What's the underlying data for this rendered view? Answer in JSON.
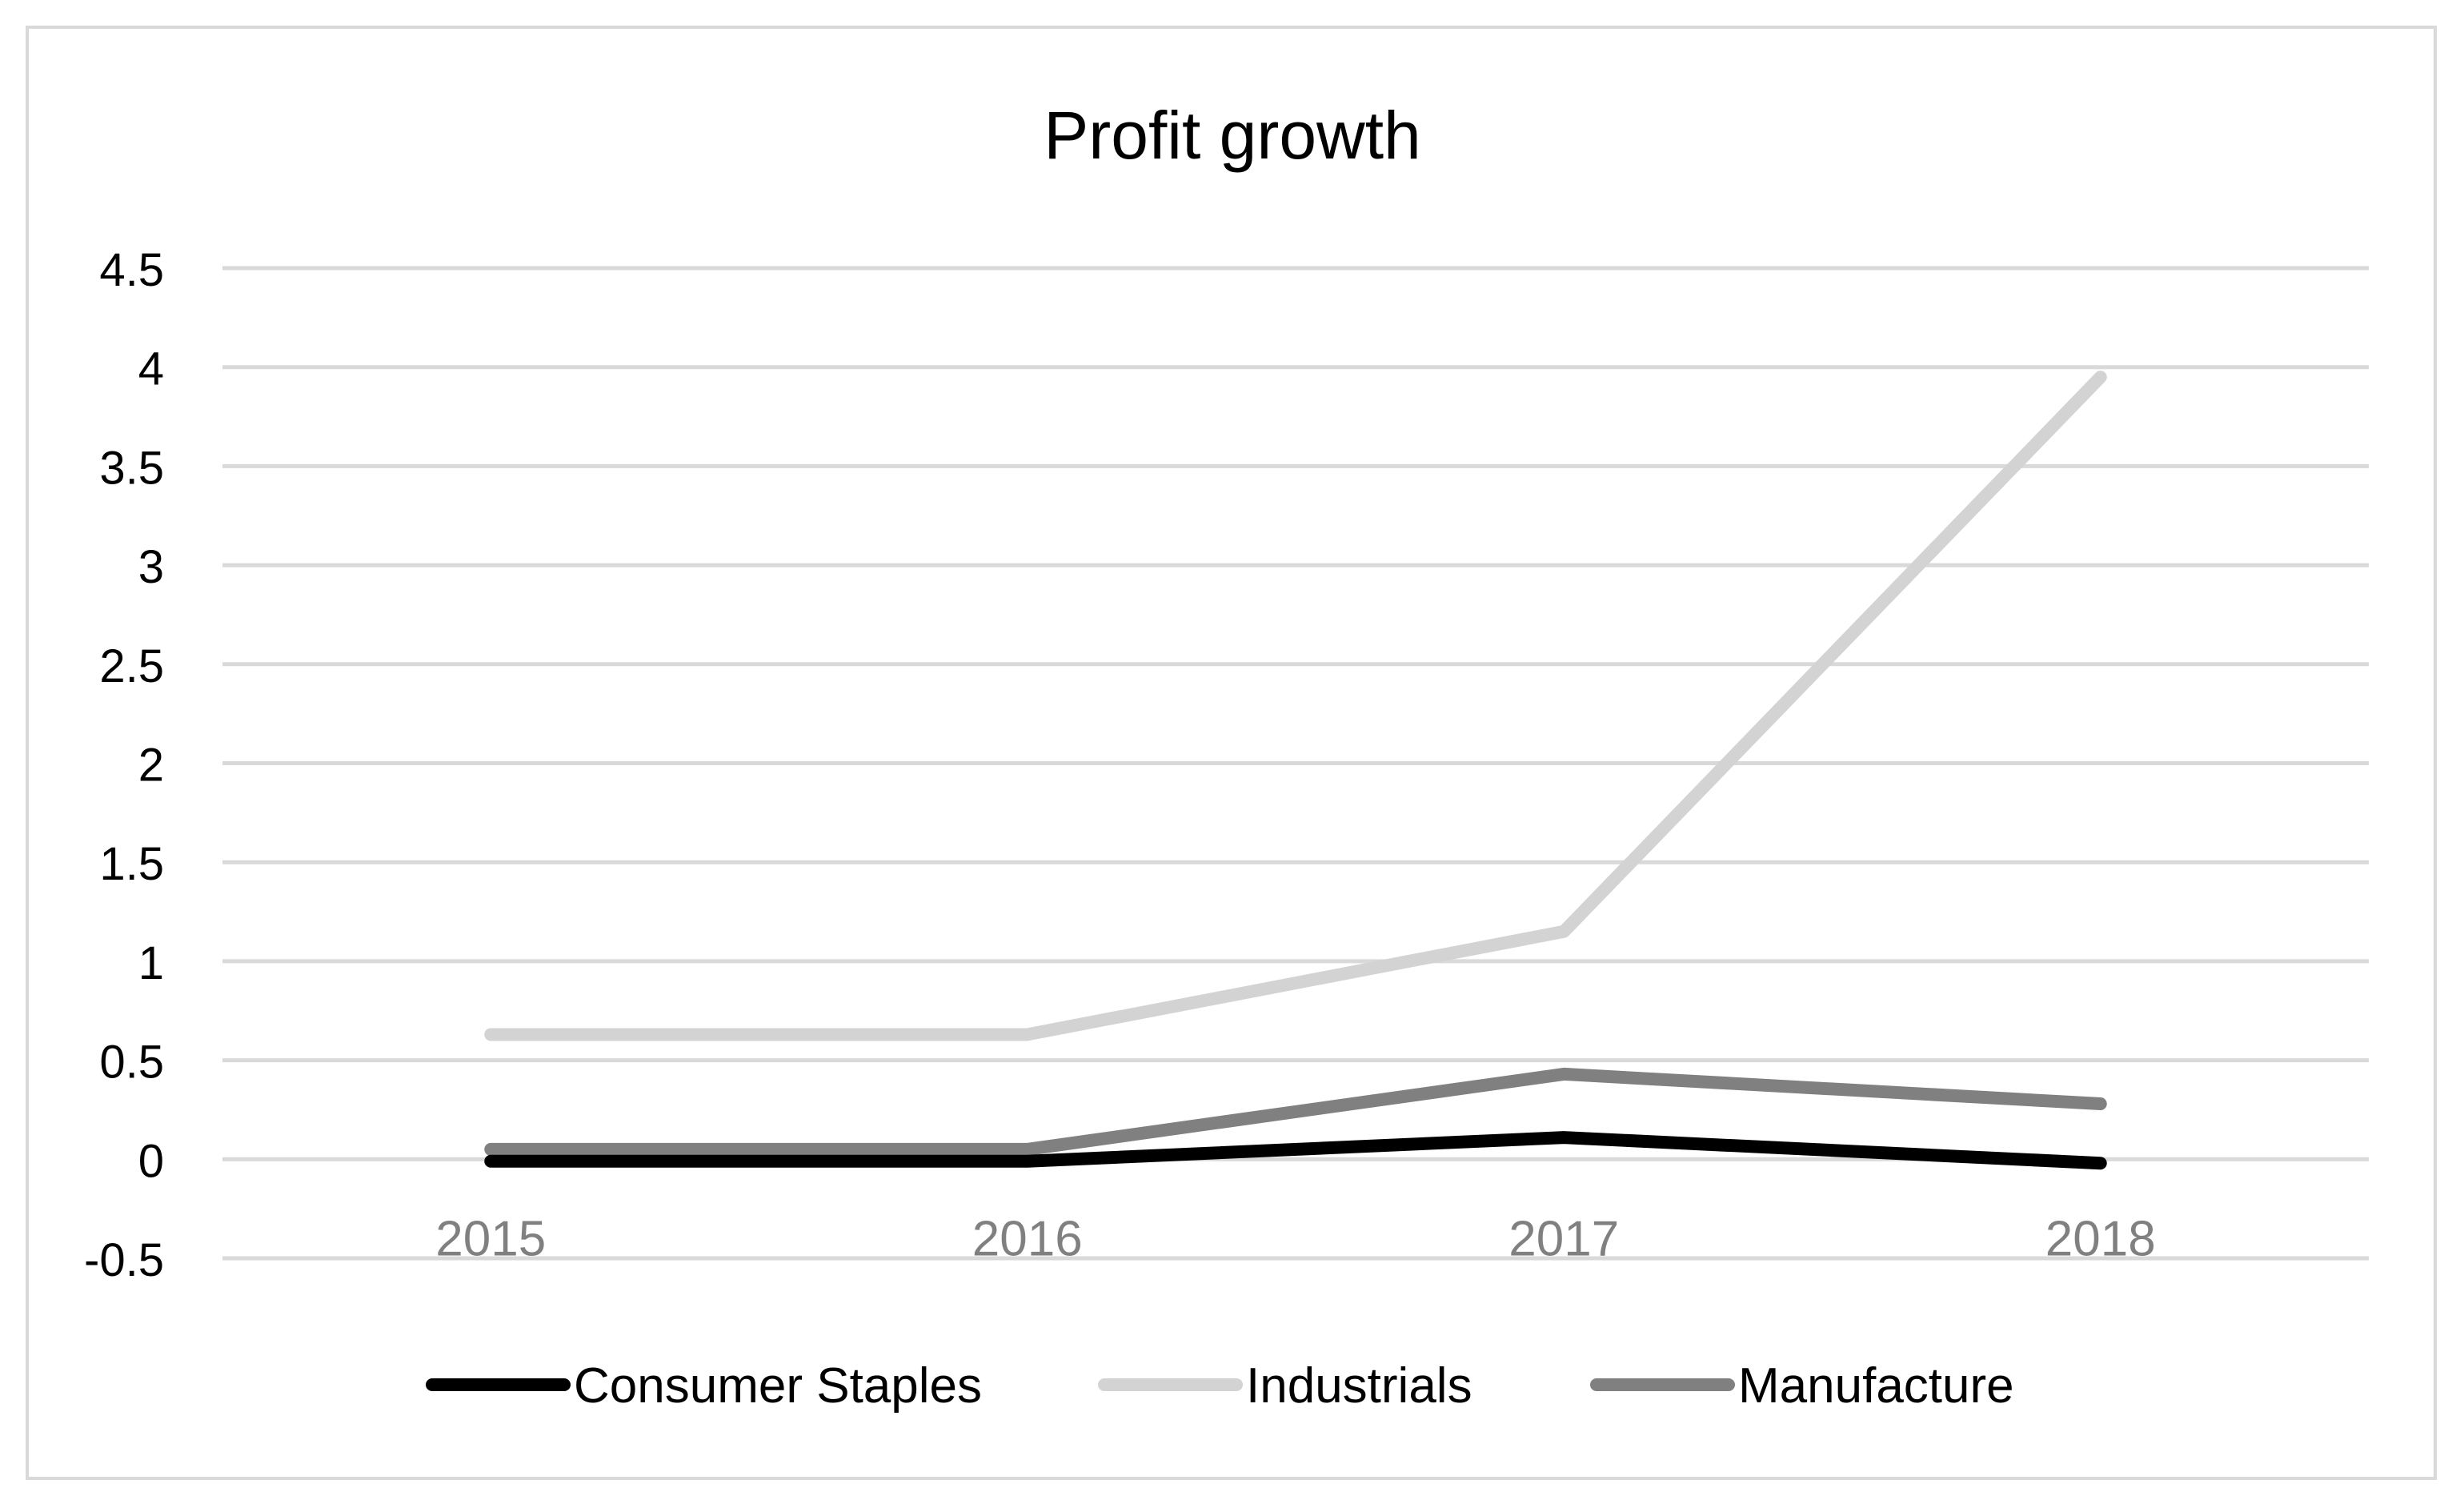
{
  "chart_data": {
    "type": "line",
    "title": "Profit growth",
    "categories": [
      "2015",
      "2016",
      "2017",
      "2018"
    ],
    "ylim": [
      -0.5,
      4.5
    ],
    "yticks": [
      -0.5,
      0,
      0.5,
      1,
      1.5,
      2,
      2.5,
      3,
      3.5,
      4,
      4.5
    ],
    "ytick_labels": [
      "-0.5",
      "0",
      "0.5",
      "1",
      "1.5",
      "2",
      "2.5",
      "3",
      "3.5",
      "4",
      "4.5"
    ],
    "xlabel": "",
    "ylabel": "",
    "grid": true,
    "legend_position": "bottom",
    "series": [
      {
        "name": "Consumer Staples",
        "color": "#000000",
        "values": [
          -0.01,
          -0.01,
          0.11,
          -0.02
        ]
      },
      {
        "name": "Industrials",
        "color": "#d3d3d3",
        "values": [
          0.63,
          0.63,
          1.15,
          3.95
        ]
      },
      {
        "name": "Manufacture",
        "color": "#808080",
        "values": [
          0.05,
          0.05,
          0.43,
          0.28
        ]
      }
    ]
  }
}
